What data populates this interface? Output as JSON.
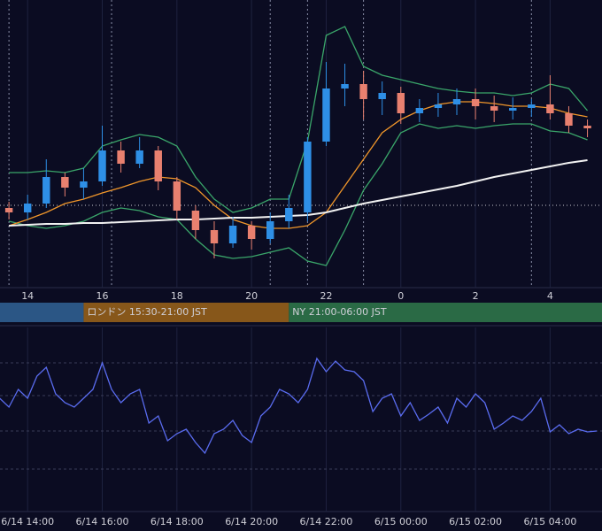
{
  "chart_data": [
    {
      "type": "candlestick",
      "x": [
        13.5,
        14,
        14.5,
        15,
        15.5,
        16,
        16.5,
        17,
        17.5,
        18,
        18.5,
        19,
        19.5,
        20,
        20.5,
        21,
        21.5,
        22,
        22.5,
        23,
        23.5,
        24,
        24.5,
        25,
        25.5,
        26,
        26.5,
        27,
        27.5,
        28,
        28.5,
        29
      ],
      "open": [
        90,
        85,
        95,
        125,
        113,
        120,
        155,
        140,
        155,
        120,
        87,
        65,
        50,
        70,
        55,
        75,
        85,
        165,
        225,
        230,
        213,
        220,
        197,
        203,
        207,
        213,
        205,
        200,
        203,
        207,
        197,
        183
      ],
      "high": [
        97,
        105,
        145,
        130,
        135,
        183,
        165,
        170,
        160,
        125,
        93,
        75,
        80,
        75,
        85,
        105,
        170,
        255,
        253,
        245,
        233,
        227,
        213,
        220,
        225,
        225,
        217,
        215,
        213,
        240,
        205,
        190
      ],
      "low": [
        77,
        77,
        90,
        103,
        100,
        115,
        130,
        135,
        110,
        77,
        55,
        33,
        45,
        43,
        50,
        67,
        75,
        160,
        205,
        190,
        195,
        185,
        187,
        193,
        195,
        190,
        187,
        190,
        193,
        190,
        175,
        170
      ],
      "close": [
        85,
        95,
        125,
        113,
        120,
        155,
        140,
        155,
        120,
        87,
        65,
        50,
        70,
        55,
        75,
        90,
        165,
        225,
        230,
        213,
        220,
        197,
        203,
        207,
        213,
        205,
        200,
        203,
        207,
        197,
        183,
        180
      ],
      "up_color": "#2e8fe6",
      "down_color": "#e8806f",
      "series": [
        {
          "color": "#3aa66a",
          "values": [
            130,
            130,
            132,
            130,
            135,
            160,
            167,
            173,
            170,
            160,
            125,
            100,
            85,
            90,
            100,
            100,
            165,
            285,
            295,
            250,
            240,
            235,
            230,
            225,
            222,
            220,
            220,
            217,
            220,
            230,
            225,
            200
          ]
        },
        {
          "color": "#3aa66a",
          "values": [
            75,
            70,
            67,
            70,
            75,
            85,
            90,
            87,
            80,
            77,
            55,
            37,
            33,
            35,
            40,
            45,
            30,
            25,
            65,
            110,
            140,
            175,
            185,
            180,
            183,
            180,
            183,
            185,
            185,
            177,
            175,
            167
          ]
        },
        {
          "color": "#f0962a",
          "values": [
            70,
            77,
            85,
            95,
            100,
            107,
            113,
            120,
            125,
            123,
            113,
            93,
            77,
            70,
            67,
            67,
            70,
            85,
            115,
            145,
            175,
            190,
            200,
            207,
            210,
            210,
            208,
            205,
            205,
            203,
            197,
            193
          ]
        },
        {
          "color": "#f2f2f2",
          "values": [
            70,
            71,
            72,
            72,
            73,
            73,
            74,
            75,
            76,
            77,
            77,
            78,
            79,
            79,
            80,
            81,
            82,
            85,
            90,
            95,
            99,
            103,
            107,
            111,
            115,
            120,
            125,
            129,
            133,
            137,
            141,
            144
          ]
        }
      ],
      "hline": 93,
      "markers": [
        13.5,
        16.25,
        20.5,
        21.5,
        23,
        27.5
      ],
      "xlim": [
        13.26,
        29.39
      ],
      "ylim": [
        0,
        325
      ],
      "xticks": [
        14,
        16,
        18,
        20,
        22,
        {
          "value": 24,
          "label": "0"
        },
        {
          "value": 26,
          "label": "2"
        },
        {
          "value": 28,
          "label": "4"
        }
      ],
      "sessions": [
        {
          "label": null,
          "color": "#2b5685",
          "start": 9
        },
        {
          "label": "ロンドン 15:30-21:00 JST",
          "color": "#87571a",
          "start": 15.5
        },
        {
          "label": "NY 21:00-06:00 JST",
          "color": "#2a6a45",
          "start": 21
        }
      ]
    },
    {
      "type": "line",
      "x": [
        13.25,
        13.5,
        13.75,
        14,
        14.25,
        14.5,
        14.75,
        15,
        15.25,
        15.5,
        15.75,
        16,
        16.25,
        16.5,
        16.75,
        17,
        17.25,
        17.5,
        17.75,
        18,
        18.25,
        18.5,
        18.75,
        19,
        19.25,
        19.5,
        19.75,
        20,
        20.25,
        20.5,
        20.75,
        21,
        21.25,
        21.5,
        21.75,
        22,
        22.25,
        22.5,
        22.75,
        23,
        23.25,
        23.5,
        23.75,
        24,
        24.25,
        24.5,
        24.75,
        25,
        25.25,
        25.5,
        25.75,
        26,
        26.25,
        26.5,
        26.75,
        27,
        27.25,
        27.5,
        27.75,
        28,
        28.25,
        28.5,
        28.75,
        29,
        29.25
      ],
      "values": [
        128,
        118,
        138,
        128,
        153,
        163,
        133,
        123,
        118,
        128,
        138,
        168,
        138,
        123,
        133,
        138,
        100,
        108,
        80,
        88,
        93,
        78,
        66,
        88,
        93,
        103,
        86,
        78,
        108,
        118,
        138,
        133,
        123,
        138,
        173,
        158,
        170,
        160,
        158,
        148,
        113,
        128,
        133,
        108,
        123,
        103,
        110,
        118,
        100,
        128,
        118,
        133,
        123,
        93,
        100,
        108,
        103,
        113,
        128,
        90,
        98,
        88,
        93,
        90,
        91
      ],
      "color": "#5a6cf0",
      "xlim": [
        13.26,
        29.39
      ],
      "ylim": [
        0,
        208
      ],
      "grid_y": [
        48,
        91,
        131,
        168
      ],
      "xticks": [
        {
          "value": 14,
          "label": "6/14 14:00"
        },
        {
          "value": 16,
          "label": "6/14 16:00"
        },
        {
          "value": 18,
          "label": "6/14 18:00"
        },
        {
          "value": 20,
          "label": "6/14 20:00"
        },
        {
          "value": 22,
          "label": "6/14 22:00"
        },
        {
          "value": 24,
          "label": "6/15 00:00"
        },
        {
          "value": 26,
          "label": "6/15 02:00"
        },
        {
          "value": 28,
          "label": "6/15 04:00"
        }
      ]
    }
  ]
}
